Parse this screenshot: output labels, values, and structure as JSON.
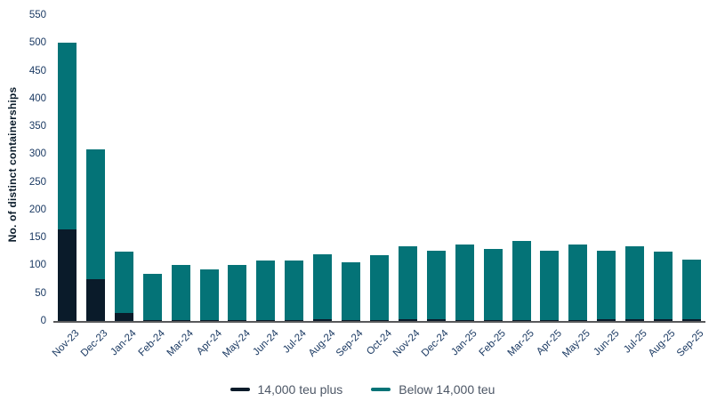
{
  "chart": {
    "y_axis_title": "No. of distinct containerships",
    "axis_color": "#58595b",
    "tick_label_color": "#1b3a63",
    "legend": {
      "items": [
        {
          "label": "14,000 teu plus",
          "color": "#0a1b2a"
        },
        {
          "label": "Below 14,000 teu",
          "color": "#047377"
        }
      ]
    }
  },
  "chart_data": {
    "type": "bar",
    "stacked": true,
    "title": "",
    "xlabel": "",
    "ylabel": "No. of distinct containerships",
    "ylim": [
      0,
      550
    ],
    "ytick_step": 50,
    "grid": false,
    "legend_position": "bottom",
    "categories": [
      "Nov-23",
      "Dec-23",
      "Jan-24",
      "Feb-24",
      "Mar-24",
      "Apr-24",
      "May-24",
      "Jun-24",
      "Jul-24",
      "Aug-24",
      "Sep-24",
      "Oct-24",
      "Nov-24",
      "Dec-24",
      "Jan-25",
      "Feb-25",
      "Mar-25",
      "Apr-25",
      "May-25",
      "Jun-25",
      "Jul-25",
      "Aug-25",
      "Sep-25"
    ],
    "series": [
      {
        "name": "14,000 teu plus",
        "color": "#0a1b2a",
        "values": [
          165,
          75,
          15,
          2,
          2,
          2,
          2,
          2,
          2,
          3,
          2,
          2,
          3,
          3,
          2,
          2,
          2,
          2,
          2,
          3,
          4,
          4,
          3
        ]
      },
      {
        "name": "Below 14,000 teu",
        "color": "#047377",
        "values": [
          335,
          233,
          110,
          83,
          98,
          90,
          98,
          106,
          106,
          117,
          103,
          116,
          132,
          123,
          136,
          128,
          142,
          124,
          136,
          124,
          130,
          121,
          108
        ]
      }
    ],
    "totals": [
      500,
      308,
      125,
      85,
      100,
      92,
      100,
      108,
      108,
      120,
      105,
      118,
      135,
      126,
      138,
      130,
      144,
      126,
      138,
      127,
      134,
      125,
      111
    ]
  }
}
